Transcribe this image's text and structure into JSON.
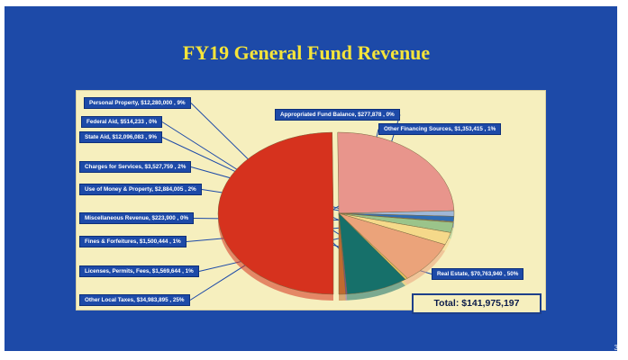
{
  "title": "FY19 General Fund Revenue",
  "page_number": "3",
  "total_label": "Total: $141,975,197",
  "colors": {
    "background": "#1d4aa8",
    "title": "#f5e43a",
    "panel": "#f6efbe"
  },
  "chart_data": {
    "type": "pie",
    "title": "FY19 General Fund Revenue",
    "total": "$141,975,197",
    "slices": [
      {
        "label": "Real Estate, $70,763,940 , 50%",
        "value": 70763940,
        "color": "#d6321e"
      },
      {
        "label": "Other Local Taxes, $34,983,895 , 25%",
        "value": 34983895,
        "color": "#e8958c"
      },
      {
        "label": "Licenses, Permits, Fees, $1,569,644 , 1%",
        "value": 1569644,
        "color": "#9fb7d6"
      },
      {
        "label": "Fines & Forfeitures, $1,500,444 , 1%",
        "value": 1500444,
        "color": "#2f6db5"
      },
      {
        "label": "Miscellaneous Revenue, $223,900 , 0%",
        "value": 223900,
        "color": "#c9b26a"
      },
      {
        "label": "Use of Money & Property, $2,884,005 , 2%",
        "value": 2884005,
        "color": "#9bc48a"
      },
      {
        "label": "Charges for Services, $3,527,759 , 2%",
        "value": 3527759,
        "color": "#f5d98a"
      },
      {
        "label": "State Aid, $12,096,083 , 9%",
        "value": 12096083,
        "color": "#eba37a"
      },
      {
        "label": "Federal Aid, $514,233 , 0%",
        "value": 514233,
        "color": "#e0c060"
      },
      {
        "label": "Personal Property, $12,280,000 , 9%",
        "value": 12280000,
        "color": "#16706a"
      },
      {
        "label": "Appropriated Fund Balance, $277,878 , 0%",
        "value": 277878,
        "color": "#7a4a9a"
      },
      {
        "label": "Other Financing Sources, $1,353,415 , 1%",
        "value": 1353415,
        "color": "#c06a30"
      }
    ]
  }
}
